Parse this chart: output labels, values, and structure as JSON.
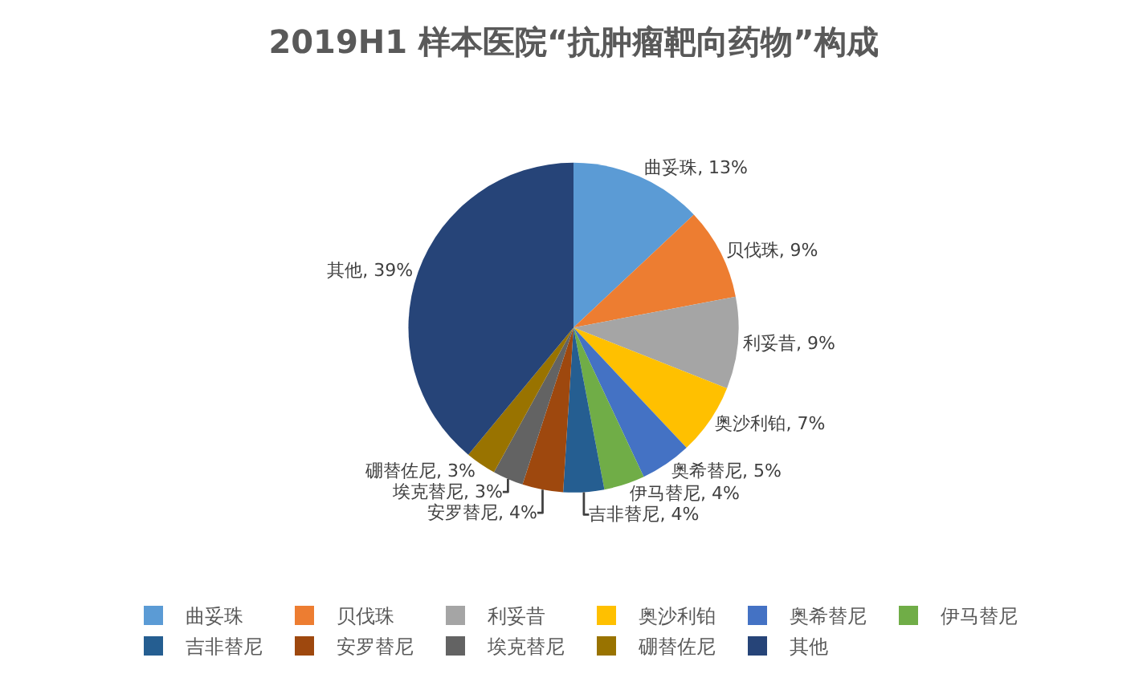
{
  "chart_data": {
    "type": "pie",
    "title": "2019H1 样本医院“抗肿瘤靶向药物”构成",
    "categories": [
      "曲妥珠",
      "贝伐珠",
      "利妥昔",
      "奥沙利铂",
      "奥希替尼",
      "伊马替尼",
      "吉非替尼",
      "安罗替尼",
      "埃克替尼",
      "硼替佐尼",
      "其他"
    ],
    "values": [
      13,
      9,
      9,
      7,
      5,
      4,
      4,
      4,
      3,
      3,
      39
    ],
    "colors": [
      "#5b9bd5",
      "#ed7d31",
      "#a5a5a5",
      "#ffc000",
      "#4472c4",
      "#70ad47",
      "#255e91",
      "#9e480e",
      "#636363",
      "#997300",
      "#264478"
    ],
    "value_labels": [
      "曲妥珠, 13%",
      "贝伐珠, 9%",
      "利妥昔, 9%",
      "奥沙利铂, 7%",
      "奥希替尼, 5%",
      "伊马替尼, 4%",
      "吉非替尼, 4%",
      "安罗替尼, 4%",
      "埃克替尼, 3%",
      "硼替佐尼, 3%",
      "其他, 39%"
    ],
    "legend": "bottom"
  }
}
